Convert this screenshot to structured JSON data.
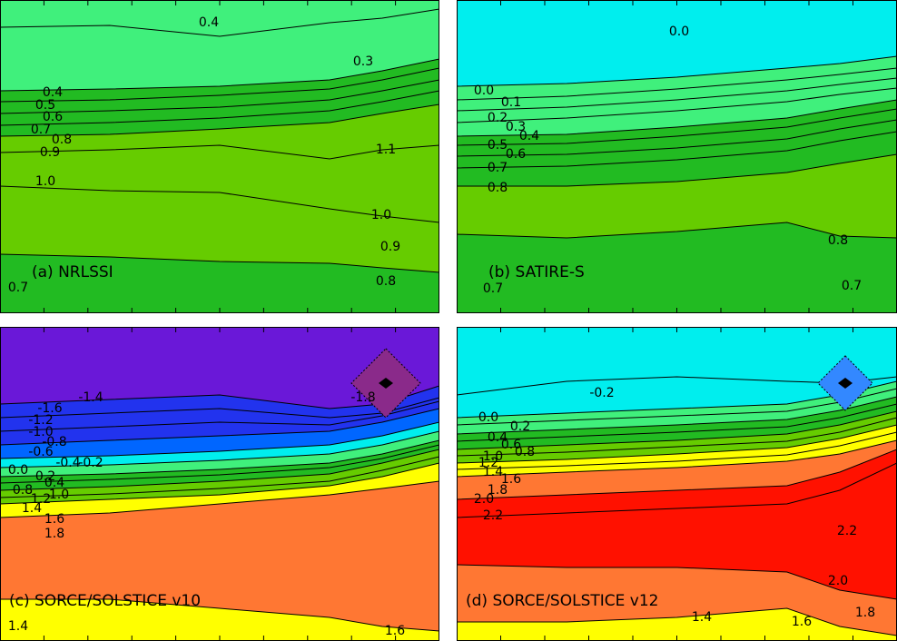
{
  "chart_data": [
    {
      "type": "contour",
      "title": "(a) NRLSSI",
      "contour_labels": [
        "0.4",
        "0.3",
        "0.4",
        "0.5",
        "0.6",
        "0.7",
        "0.8",
        "0.9",
        "1.1",
        "1.0",
        "1.0",
        "0.9",
        "0.8",
        "0.7"
      ]
    },
    {
      "type": "contour",
      "title": "(b) SATIRE-S",
      "contour_labels": [
        "0.0",
        "0.0",
        "0.1",
        "0.2",
        "0.3",
        "0.4",
        "0.5",
        "0.6",
        "0.7",
        "0.8",
        "0.8",
        "0.7",
        "0.7"
      ]
    },
    {
      "type": "contour",
      "title": "(c) SORCE/SOLSTICE v10",
      "contour_labels": [
        "-1.6",
        "-1.4",
        "-1.8",
        "-1.2",
        "-1.0",
        "-0.8",
        "-0.6",
        "-0.4",
        "-0.2",
        "0.0",
        "0.2",
        "0.4",
        "0.8",
        "1.2",
        "1.0",
        "1.4",
        "1.6",
        "1.8",
        "1.4",
        "1.6"
      ]
    },
    {
      "type": "contour",
      "title": "(d) SORCE/SOLSTICE v12",
      "contour_labels": [
        "-0.2",
        "0.0",
        "0.2",
        "0.4",
        "0.6",
        "0.8",
        "1.0",
        "1.2",
        "1.4",
        "1.6",
        "1.8",
        "2.0",
        "2.2",
        "2.2",
        "2.0",
        "1.8",
        "1.6",
        "1.4"
      ]
    }
  ]
}
